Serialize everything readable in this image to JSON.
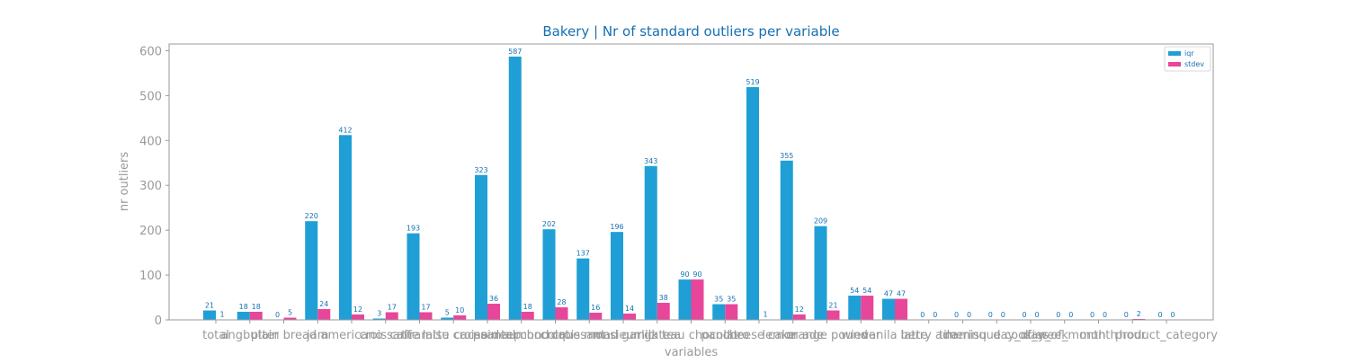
{
  "chart_data": {
    "type": "bar",
    "title": "Bakery | Nr of standard outliers per variable",
    "xlabel": "variables",
    "ylabel": "nr outliers",
    "ylim": [
      0,
      615
    ],
    "yticks": [
      0,
      100,
      200,
      300,
      400,
      500,
      600
    ],
    "grid": false,
    "legend_position": "top-right",
    "categories": [
      "total",
      "angbutter",
      "plain bread",
      "jam",
      "americano",
      "croissant",
      "caffe latte",
      "tiramisu croissant",
      "cacao deep",
      "pain au chocolat",
      "almond croissant",
      "croque monsieur",
      "mad garlic",
      "milk tea",
      "gateau chocolat",
      "pandoro",
      "cheese cake",
      "lemon ade",
      "orange pound",
      "wiener",
      "vanila latte",
      "berry ade",
      "tiramisu",
      "merinque cookies",
      "day_of_week",
      "day_of_month",
      "month",
      "hour",
      "product_category"
    ],
    "category_labels_visible": [
      "total",
      "angbutter",
      "plain bread",
      "jam",
      "americano",
      "croissant",
      "caffe latte",
      "tiramisu croissant",
      "cacao deep",
      "pain au chocolat",
      "almond croissant",
      "croque monsieur",
      "mad garlic",
      "milk tea",
      "gateau chocolat",
      "pandoro",
      "cheese cake",
      "lemon ade",
      "orange pound",
      "wiener",
      "vanila latte",
      "berry ade",
      "tiramisu",
      "merinque cookies",
      "day_of_week",
      "day_of_month",
      "month",
      "hour",
      "product_category"
    ],
    "series": [
      {
        "name": "iqr",
        "color": "#1f9fd6",
        "values": [
          21,
          18,
          0,
          220,
          412,
          3,
          193,
          5,
          323,
          587,
          202,
          137,
          196,
          343,
          90,
          35,
          519,
          355,
          209,
          54,
          47,
          0,
          0,
          0,
          0,
          0,
          0,
          0,
          0
        ]
      },
      {
        "name": "stdev",
        "color": "#e8469a",
        "values": [
          1,
          18,
          5,
          24,
          12,
          17,
          17,
          10,
          36,
          18,
          28,
          16,
          14,
          38,
          90,
          35,
          1,
          12,
          21,
          54,
          47,
          0,
          0,
          0,
          0,
          0,
          0,
          2,
          0
        ]
      }
    ],
    "colors": {
      "title": "#1670b2",
      "axis_text": "#999999",
      "data_label": "#1670b2",
      "spine": "#999999"
    }
  }
}
